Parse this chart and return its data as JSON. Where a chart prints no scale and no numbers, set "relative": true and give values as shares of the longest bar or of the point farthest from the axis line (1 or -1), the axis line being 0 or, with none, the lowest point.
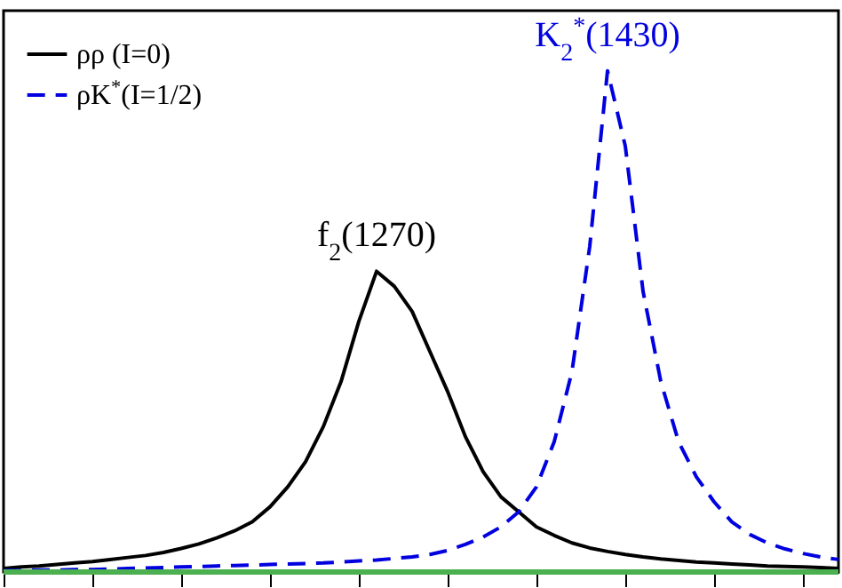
{
  "chart_data": {
    "type": "line",
    "relative": true,
    "tick_labels": false,
    "legend": "top left",
    "categories": [
      null,
      null,
      null,
      null,
      null,
      null,
      null,
      null,
      null,
      null,
      null,
      null,
      null,
      null,
      null,
      null,
      null,
      null,
      null,
      null,
      null,
      null,
      null,
      null,
      null,
      null,
      null,
      null,
      null,
      null,
      null,
      null,
      null,
      null,
      null,
      null,
      null,
      null,
      null,
      null,
      null,
      null,
      null,
      null,
      null,
      null,
      null,
      null
    ],
    "series": [
      {
        "name": "ρρ (I=0)",
        "color": "#000000",
        "line_style": "solid",
        "values": [
          0.007,
          0.01,
          0.012,
          0.015,
          0.018,
          0.021,
          0.025,
          0.029,
          0.033,
          0.039,
          0.047,
          0.056,
          0.068,
          0.082,
          0.1,
          0.13,
          0.17,
          0.22,
          0.29,
          0.38,
          0.5,
          0.6,
          0.57,
          0.52,
          0.44,
          0.36,
          0.27,
          0.2,
          0.15,
          0.12,
          0.09,
          0.073,
          0.058,
          0.048,
          0.041,
          0.035,
          0.03,
          0.026,
          0.023,
          0.02,
          0.018,
          0.016,
          0.014,
          0.012,
          0.011,
          0.01,
          0.009,
          0.007
        ]
      },
      {
        "name": "ρK$^{*}$(I=1/2)",
        "color": "#0000e0",
        "line_style": "dashed",
        "values": [
          0.003,
          0.003,
          0.004,
          0.004,
          0.005,
          0.005,
          0.006,
          0.007,
          0.008,
          0.009,
          0.01,
          0.011,
          0.012,
          0.013,
          0.014,
          0.015,
          0.016,
          0.017,
          0.018,
          0.02,
          0.022,
          0.024,
          0.027,
          0.03,
          0.035,
          0.043,
          0.055,
          0.07,
          0.09,
          0.12,
          0.17,
          0.26,
          0.4,
          0.65,
          1,
          0.85,
          0.56,
          0.38,
          0.26,
          0.19,
          0.14,
          0.1,
          0.075,
          0.058,
          0.046,
          0.037,
          0.03,
          0.025
        ]
      }
    ],
    "annotations": [
      "f$_{2}$(1270)",
      "K$_{2}$$^{*}$(1430)"
    ],
    "ref_lines": [
      {
        "axis": "y",
        "value": 0,
        "color": "#4caf50"
      }
    ]
  }
}
